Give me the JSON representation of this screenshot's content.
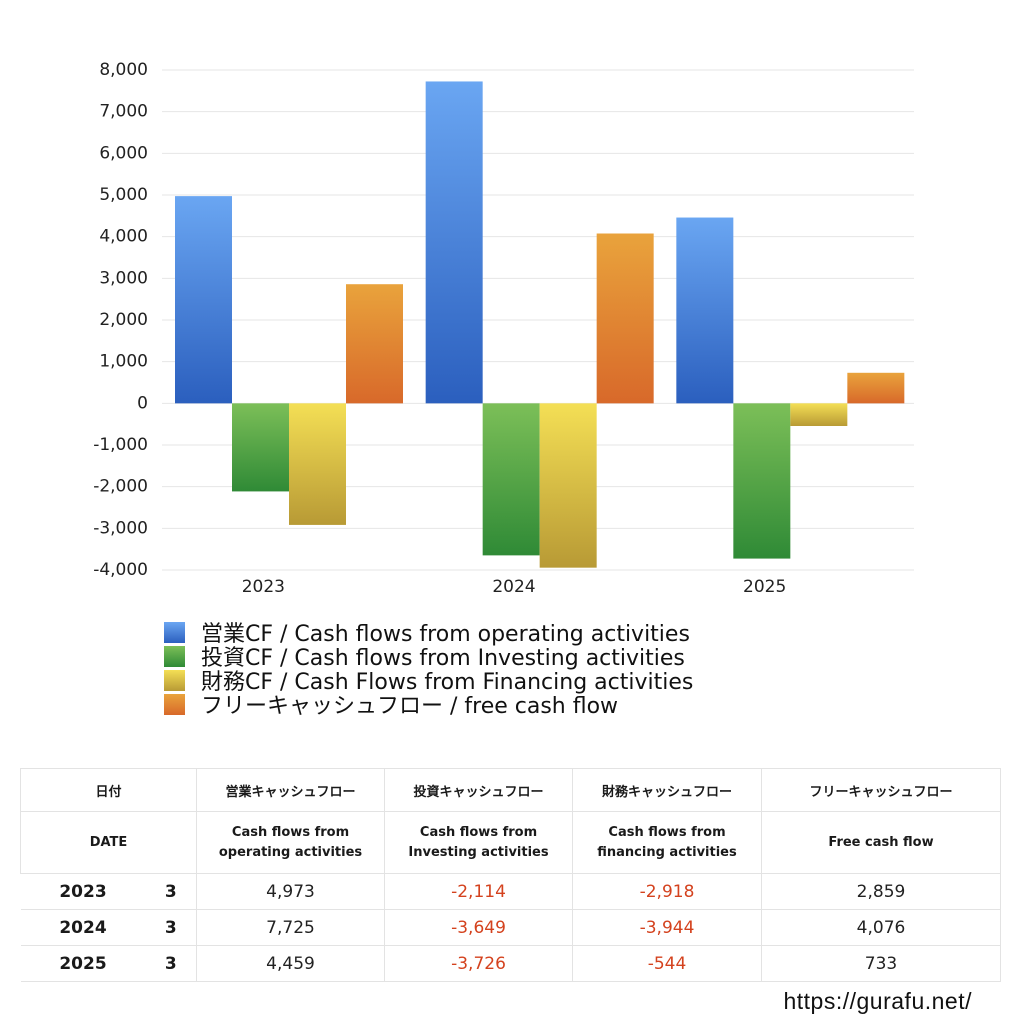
{
  "chart_data": {
    "type": "bar",
    "categories": [
      "2023",
      "2024",
      "2025"
    ],
    "ylim": [
      -4000,
      8000
    ],
    "yticks": [
      "8,000",
      "7,000",
      "6,000",
      "5,000",
      "4,000",
      "3,000",
      "2,000",
      "1,000",
      "0",
      "-1,000",
      "-2,000",
      "-3,000",
      "-4,000"
    ],
    "ytick_values": [
      8000,
      7000,
      6000,
      5000,
      4000,
      3000,
      2000,
      1000,
      0,
      -1000,
      -2000,
      -3000,
      -4000
    ],
    "grid": true,
    "legend_position": "bottom",
    "series": [
      {
        "name": "営業CF / Cash flows from operating activities",
        "values": [
          4973,
          7725,
          4459
        ],
        "color_top": "#6aa6f2",
        "color_bottom": "#2b5fbe"
      },
      {
        "name": "投資CF / Cash flows from Investing activities",
        "values": [
          -2114,
          -3649,
          -3726
        ],
        "color_top": "#7cbf58",
        "color_bottom": "#2f8a36"
      },
      {
        "name": "財務CF / Cash Flows from Financing activities",
        "values": [
          -2918,
          -3944,
          -544
        ],
        "color_top": "#f4df55",
        "color_bottom": "#b89a35"
      },
      {
        "name": "フリーキャッシュフロー / free cash flow",
        "values": [
          2859,
          4076,
          733
        ],
        "color_top": "#e9a33c",
        "color_bottom": "#d8692a"
      }
    ]
  },
  "table": {
    "header_ja": [
      "日付",
      "営業キャッシュフロー",
      "投資キャッシュフロー",
      "財務キャッシュフロー",
      "フリーキャッシュフロー"
    ],
    "header_en": {
      "date": "DATE",
      "operating": [
        "Cash flows from",
        "operating activities"
      ],
      "investing": [
        "Cash flows from",
        "Investing activities"
      ],
      "financing": [
        "Cash flows from",
        "financing activities"
      ],
      "free": "Free cash flow"
    },
    "rows": [
      {
        "year": "2023",
        "month": "3",
        "operating": "4,973",
        "investing": "-2,114",
        "financing": "-2,918",
        "free": "2,859"
      },
      {
        "year": "2024",
        "month": "3",
        "operating": "7,725",
        "investing": "-3,649",
        "financing": "-3,944",
        "free": "4,076"
      },
      {
        "year": "2025",
        "month": "3",
        "operating": "4,459",
        "investing": "-3,726",
        "financing": "-544",
        "free": "733"
      }
    ]
  },
  "footer": {
    "url": "https://gurafu.net/"
  }
}
